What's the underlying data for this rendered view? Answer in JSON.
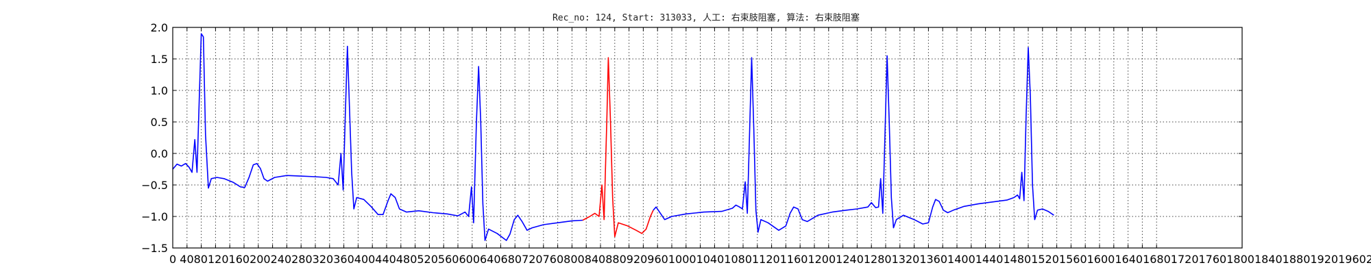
{
  "chart_data": {
    "type": "line",
    "title": "Rec_no: 124, Start: 313033, 人工: 右束肢阻塞, 算法: 右束肢阻塞",
    "xlabel": "",
    "ylabel": "",
    "xlim": [
      0,
      1500
    ],
    "ylim": [
      -1.5,
      2.0
    ],
    "grid": true,
    "yticks": [
      -1.5,
      -1.0,
      -0.5,
      0.0,
      0.5,
      1.0,
      1.5,
      2.0
    ],
    "ytick_labels": [
      "−1.5",
      "−1.0",
      "−0.5",
      "0.0",
      "0.5",
      "1.0",
      "1.5",
      "2.0"
    ],
    "xticks": [
      0,
      20,
      40,
      60,
      80,
      100,
      120,
      140,
      160,
      180,
      200,
      220,
      240,
      260,
      280,
      300,
      320,
      340,
      360,
      380,
      400,
      420,
      440,
      460,
      480,
      500,
      520,
      540,
      560,
      580,
      600,
      620,
      640,
      660,
      680,
      700,
      720,
      740,
      760,
      780,
      800,
      820,
      840,
      860,
      880,
      900,
      920,
      940,
      960,
      980,
      1000,
      1020,
      1040,
      1060,
      1080,
      1100,
      1120,
      1140,
      1160,
      1180,
      1200,
      1220,
      1240,
      1260,
      1280,
      1300,
      1320,
      1340,
      1360,
      1380
    ],
    "xtick_labels_printed": "0 4080120160200240280320360400440480520560600640680720760800840880920960100010401080112011601200124012801320136014001440148015201560160016401680172017601800184018801920196020002040208021202160220022402280232023602400244024802520256026002",
    "series": [
      {
        "color": "#0000ff",
        "points": [
          [
            0,
            -0.25
          ],
          [
            6,
            -0.17
          ],
          [
            12,
            -0.2
          ],
          [
            18,
            -0.16
          ],
          [
            23,
            -0.22
          ],
          [
            27,
            -0.3
          ],
          [
            31,
            0.22
          ],
          [
            34,
            -0.3
          ],
          [
            37,
            0.8
          ],
          [
            40,
            1.9
          ],
          [
            43,
            1.85
          ],
          [
            46,
            0.3
          ],
          [
            50,
            -0.55
          ],
          [
            54,
            -0.4
          ],
          [
            62,
            -0.38
          ],
          [
            72,
            -0.4
          ],
          [
            85,
            -0.46
          ],
          [
            95,
            -0.53
          ],
          [
            101,
            -0.54
          ],
          [
            107,
            -0.38
          ],
          [
            113,
            -0.18
          ],
          [
            118,
            -0.16
          ],
          [
            123,
            -0.24
          ],
          [
            128,
            -0.4
          ],
          [
            133,
            -0.44
          ],
          [
            143,
            -0.38
          ],
          [
            160,
            -0.35
          ],
          [
            180,
            -0.36
          ],
          [
            200,
            -0.37
          ],
          [
            215,
            -0.38
          ],
          [
            225,
            -0.4
          ],
          [
            232,
            -0.5
          ],
          [
            236,
            0.0
          ],
          [
            239,
            -0.58
          ],
          [
            242,
            0.6
          ],
          [
            245,
            1.7
          ],
          [
            248,
            0.7
          ],
          [
            251,
            -0.3
          ],
          [
            254,
            -0.88
          ],
          [
            258,
            -0.7
          ],
          [
            268,
            -0.73
          ],
          [
            278,
            -0.84
          ],
          [
            288,
            -0.97
          ],
          [
            295,
            -0.97
          ],
          [
            302,
            -0.75
          ],
          [
            306,
            -0.64
          ],
          [
            312,
            -0.7
          ],
          [
            318,
            -0.88
          ],
          [
            328,
            -0.93
          ],
          [
            345,
            -0.91
          ],
          [
            365,
            -0.94
          ],
          [
            385,
            -0.96
          ],
          [
            400,
            -0.99
          ],
          [
            410,
            -0.93
          ],
          [
            415,
            -1.0
          ],
          [
            419,
            -0.53
          ],
          [
            422,
            -1.1
          ],
          [
            426,
            0.5
          ],
          [
            429,
            1.38
          ],
          [
            432,
            0.5
          ],
          [
            435,
            -0.8
          ],
          [
            438,
            -1.38
          ],
          [
            443,
            -1.2
          ],
          [
            455,
            -1.27
          ],
          [
            468,
            -1.38
          ],
          [
            473,
            -1.28
          ],
          [
            479,
            -1.05
          ],
          [
            484,
            -0.98
          ],
          [
            490,
            -1.08
          ],
          [
            497,
            -1.22
          ],
          [
            504,
            -1.18
          ],
          [
            520,
            -1.13
          ],
          [
            540,
            -1.1
          ],
          [
            560,
            -1.07
          ],
          [
            575,
            -1.06
          ]
        ]
      },
      {
        "color": "#ff0000",
        "points": [
          [
            575,
            -1.06
          ],
          [
            585,
            -1.0
          ],
          [
            592,
            -0.95
          ],
          [
            598,
            -1.0
          ],
          [
            602,
            -0.5
          ],
          [
            605,
            -1.05
          ],
          [
            609,
            0.6
          ],
          [
            611,
            1.52
          ],
          [
            614,
            0.5
          ],
          [
            617,
            -0.7
          ],
          [
            620,
            -1.32
          ],
          [
            625,
            -1.1
          ],
          [
            638,
            -1.15
          ],
          [
            650,
            -1.22
          ],
          [
            658,
            -1.27
          ],
          [
            664,
            -1.2
          ],
          [
            670,
            -1.0
          ],
          [
            674,
            -0.9
          ]
        ]
      },
      {
        "color": "#0000ff",
        "points": [
          [
            674,
            -0.9
          ],
          [
            678,
            -0.85
          ],
          [
            684,
            -0.95
          ],
          [
            690,
            -1.05
          ],
          [
            700,
            -1.0
          ],
          [
            720,
            -0.96
          ],
          [
            745,
            -0.93
          ],
          [
            770,
            -0.92
          ],
          [
            785,
            -0.87
          ],
          [
            790,
            -0.82
          ],
          [
            795,
            -0.85
          ],
          [
            799,
            -0.88
          ],
          [
            803,
            -0.45
          ],
          [
            806,
            -0.95
          ],
          [
            809,
            0.3
          ],
          [
            812,
            1.52
          ],
          [
            815,
            0.4
          ],
          [
            818,
            -0.9
          ],
          [
            821,
            -1.25
          ],
          [
            825,
            -1.05
          ],
          [
            835,
            -1.1
          ],
          [
            850,
            -1.22
          ],
          [
            860,
            -1.15
          ],
          [
            866,
            -0.95
          ],
          [
            871,
            -0.85
          ],
          [
            877,
            -0.88
          ],
          [
            883,
            -1.05
          ],
          [
            890,
            -1.08
          ],
          [
            905,
            -0.98
          ],
          [
            925,
            -0.93
          ],
          [
            945,
            -0.9
          ],
          [
            960,
            -0.88
          ],
          [
            975,
            -0.85
          ],
          [
            980,
            -0.78
          ],
          [
            986,
            -0.86
          ],
          [
            990,
            -0.85
          ],
          [
            993,
            -0.4
          ],
          [
            996,
            -0.95
          ],
          [
            999,
            0.3
          ],
          [
            1002,
            1.55
          ],
          [
            1005,
            0.5
          ],
          [
            1008,
            -0.7
          ],
          [
            1011,
            -1.18
          ],
          [
            1015,
            -1.05
          ],
          [
            1025,
            -0.98
          ],
          [
            1040,
            -1.05
          ],
          [
            1052,
            -1.12
          ],
          [
            1060,
            -1.1
          ],
          [
            1066,
            -0.85
          ],
          [
            1070,
            -0.73
          ],
          [
            1075,
            -0.76
          ],
          [
            1081,
            -0.9
          ],
          [
            1087,
            -0.94
          ],
          [
            1095,
            -0.9
          ],
          [
            1110,
            -0.84
          ],
          [
            1130,
            -0.8
          ],
          [
            1150,
            -0.77
          ],
          [
            1170,
            -0.74
          ],
          [
            1180,
            -0.7
          ],
          [
            1185,
            -0.66
          ],
          [
            1188,
            -0.72
          ],
          [
            1191,
            -0.3
          ],
          [
            1194,
            -0.75
          ],
          [
            1197,
            0.6
          ],
          [
            1200,
            1.68
          ],
          [
            1203,
            0.9
          ],
          [
            1206,
            -0.5
          ],
          [
            1209,
            -1.05
          ],
          [
            1213,
            -0.9
          ],
          [
            1220,
            -0.88
          ],
          [
            1228,
            -0.92
          ],
          [
            1236,
            -0.98
          ]
        ]
      }
    ]
  }
}
